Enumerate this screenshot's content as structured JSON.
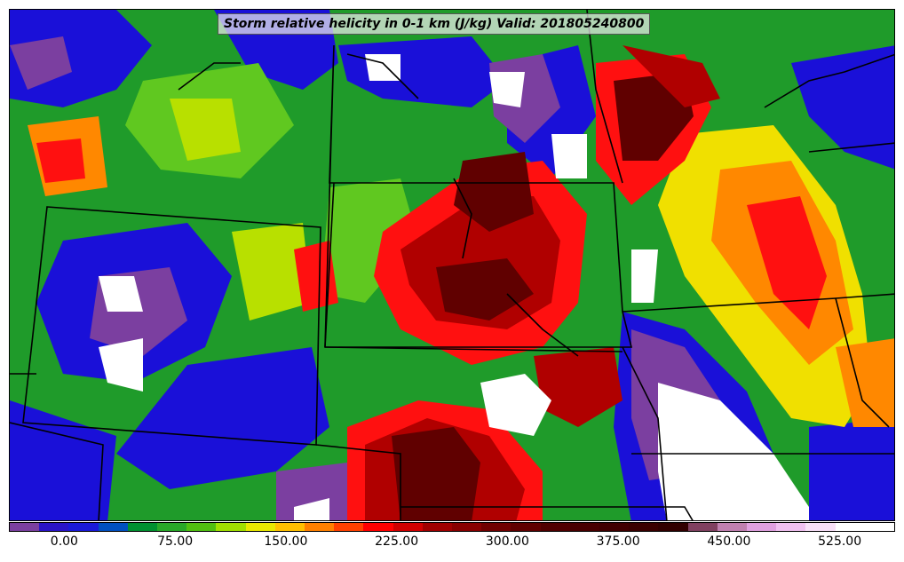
{
  "title": "Storm relative helicity in 0-1 km (J/kg) Valid: 201805240800",
  "colorbar": {
    "colors": [
      "#7b3fa0",
      "#2a14c8",
      "#1a1ad8",
      "#0050c0",
      "#009030",
      "#28a828",
      "#50c010",
      "#a0e000",
      "#e8e800",
      "#ffc000",
      "#ff8000",
      "#ff4000",
      "#ff0000",
      "#d00000",
      "#a00000",
      "#880000",
      "#700000",
      "#600000",
      "#500000",
      "#480000",
      "#400000",
      "#3a0000",
      "#320000",
      "#804060",
      "#c080b0",
      "#e0a0e0",
      "#f0c0f0",
      "#f8e0f8",
      "#ffffff",
      "#ffffff"
    ],
    "tick_labels": [
      "0.00",
      "75.00",
      "150.00",
      "225.00",
      "300.00",
      "375.00",
      "450.00",
      "525.00"
    ],
    "tick_values": [
      0,
      75,
      150,
      225,
      300,
      375,
      450,
      525
    ],
    "range": [
      -37.5,
      562.5
    ]
  },
  "field_palette": {
    "purple": "#7b3fa0",
    "blue": "#1a10d8",
    "green": "#18a030",
    "light_green": "#60c820",
    "yellow_green": "#b8e000",
    "yellow": "#f0e000",
    "orange": "#ff8800",
    "red": "#ff1010",
    "dark_red": "#b00000",
    "maroon": "#600000",
    "white": "#ffffff"
  },
  "icons": {
    "map": "helicity-map-icon"
  }
}
